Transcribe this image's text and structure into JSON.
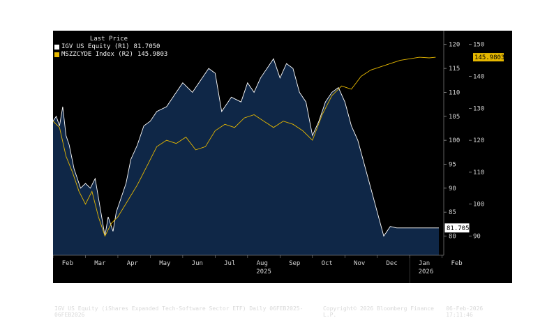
{
  "legend": {
    "title": "Last Price",
    "items": [
      {
        "name": "IGV US Equity  (R1)",
        "value": "81.7050",
        "color": "#ffffff"
      },
      {
        "name": "MSZZCYDE Index  (R2)",
        "value": "145.9803",
        "color": "#e6b800"
      }
    ]
  },
  "footer": {
    "left": "IGV US Equity (iShares Expanded Tech-Software Sector ETF) Daily 06FEB2025-06FEB2026",
    "center": "Copyright© 2026 Bloomberg Finance L.P.",
    "right": "06-Feb-2026 17:11:46"
  },
  "chart_data": {
    "type": "line",
    "title": "Last Price",
    "x_months": [
      "Feb",
      "Mar",
      "Apr",
      "May",
      "Jun",
      "Jul",
      "Aug",
      "Sep",
      "Oct",
      "Nov",
      "Dec",
      "Jan",
      "Feb"
    ],
    "x_years": [
      "2025",
      "2026"
    ],
    "axes": {
      "R1": {
        "ylim": [
          76,
          122
        ],
        "ticks": [
          80,
          85,
          90,
          95,
          100,
          105,
          110,
          115,
          120
        ]
      },
      "R2": {
        "ylim": [
          84,
          153
        ],
        "ticks": [
          90,
          100,
          110,
          120,
          130,
          140,
          150
        ]
      }
    },
    "series": [
      {
        "name": "IGV US Equity",
        "axis": "R1",
        "color": "#ffffff",
        "last_value_label": "81.7050",
        "x": [
          0,
          0.1,
          0.2,
          0.3,
          0.4,
          0.5,
          0.65,
          0.75,
          0.85,
          1.0,
          1.15,
          1.3,
          1.45,
          1.6,
          1.7,
          1.85,
          1.95,
          2.1,
          2.25,
          2.4,
          2.6,
          2.8,
          3.0,
          3.2,
          3.5,
          3.8,
          4.0,
          4.3,
          4.6,
          4.8,
          5.0,
          5.2,
          5.5,
          5.8,
          6.0,
          6.2,
          6.4,
          6.6,
          6.8,
          7.0,
          7.2,
          7.4,
          7.6,
          7.8,
          8.0,
          8.2,
          8.4,
          8.6,
          8.8,
          9.0,
          9.2,
          9.4,
          9.6,
          9.8,
          10.0,
          10.2,
          10.4,
          10.6,
          10.8,
          11.0,
          11.2,
          11.4,
          11.6,
          11.7,
          11.8,
          11.85,
          11.9
        ],
        "y": [
          104,
          105,
          103,
          107,
          101,
          99,
          94,
          92,
          90,
          91,
          90,
          92,
          86,
          80,
          84,
          81,
          85,
          88,
          91,
          96,
          99,
          103,
          104,
          106,
          107,
          110,
          112,
          110,
          113,
          115,
          114,
          106,
          109,
          108,
          112,
          110,
          113,
          115,
          117,
          113,
          116,
          115,
          110,
          108,
          101,
          104,
          108,
          110,
          111,
          108,
          103,
          100,
          95,
          90,
          85,
          80,
          82,
          81.7,
          81.7,
          81.7,
          81.7,
          81.7,
          81.7,
          81.7,
          81.7,
          81.7,
          81.7
        ]
      },
      {
        "name": "MSZZCYDE Index",
        "axis": "R2",
        "color": "#e6b800",
        "last_value_label": "145.9803",
        "x": [
          0,
          0.2,
          0.4,
          0.6,
          0.8,
          1.0,
          1.2,
          1.4,
          1.6,
          1.8,
          2.0,
          2.3,
          2.6,
          2.9,
          3.2,
          3.5,
          3.8,
          4.1,
          4.4,
          4.7,
          5.0,
          5.3,
          5.6,
          5.9,
          6.2,
          6.5,
          6.8,
          7.1,
          7.4,
          7.7,
          8.0,
          8.3,
          8.6,
          8.9,
          9.2,
          9.5,
          9.8,
          10.1,
          10.4,
          10.7,
          11.0,
          11.3,
          11.6,
          11.8
        ],
        "y": [
          126,
          124,
          115,
          110,
          104,
          100,
          104,
          96,
          90,
          94,
          96,
          101,
          106,
          112,
          118,
          120,
          119,
          121,
          117,
          118,
          123,
          125,
          124,
          127,
          128,
          126,
          124,
          126,
          125,
          123,
          120,
          128,
          134,
          137,
          136,
          140,
          142,
          143,
          144,
          145,
          145.5,
          146,
          145.8,
          146
        ]
      }
    ]
  }
}
